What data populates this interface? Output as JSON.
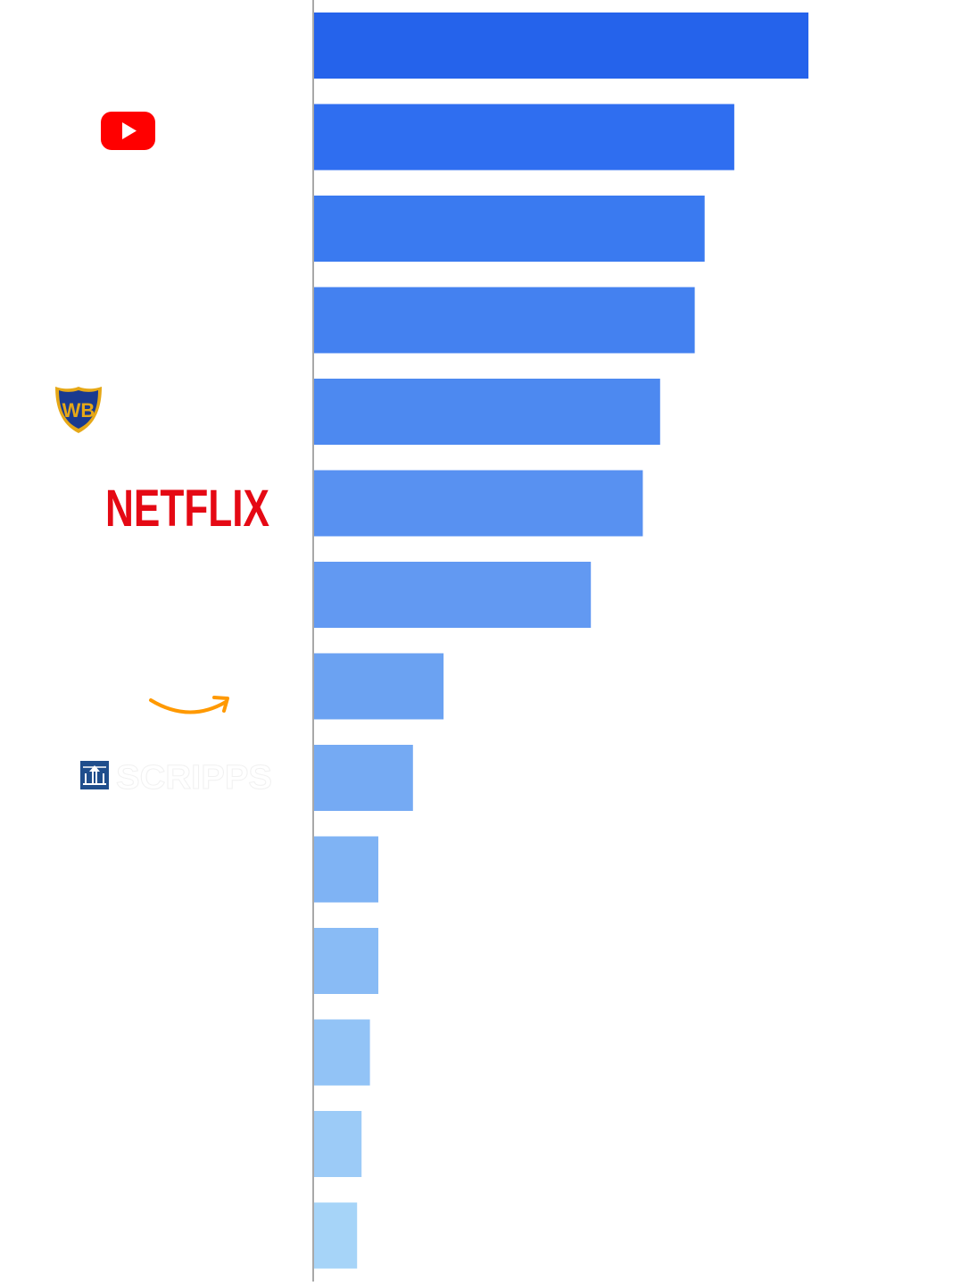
{
  "logos": {
    "youtube": {
      "icon": "youtube-logo-icon",
      "color": "#ff0000"
    },
    "warner_bros": {
      "icon": "warner-bros-shield-icon",
      "text": "WB",
      "colors": {
        "fill": "#1a3a8f",
        "outline": "#e6a817"
      }
    },
    "netflix": {
      "text": "NETFLIX",
      "color": "#e50914"
    },
    "amazon": {
      "icon": "amazon-smile-arrow-icon",
      "color": "#ff9900"
    },
    "scripps": {
      "icon": "scripps-lighthouse-icon",
      "text": "SCRIPPS",
      "color": "#1f4e8c"
    }
  },
  "chart_data": {
    "type": "bar",
    "orientation": "horizontal",
    "categories": [
      "",
      "YouTube",
      "",
      "",
      "Warner Bros.",
      "Netflix",
      "",
      "Amazon",
      "Scripps",
      "",
      "",
      "",
      "",
      ""
    ],
    "values": [
      100,
      85,
      79,
      77,
      70,
      66.5,
      56,
      26.2,
      20,
      13,
      13,
      11.3,
      9.6,
      8.7
    ],
    "xlim": [
      0,
      130
    ],
    "grid": false,
    "legend": "none",
    "bar_colors": [
      "#2563eb",
      "#2f6ef0",
      "#3a7af0",
      "#4481f0",
      "#4d89f0",
      "#5891f1",
      "#6299f2",
      "#6ba2f2",
      "#75aaf3",
      "#7fb3f4",
      "#89bbf5",
      "#92c3f6",
      "#9ccbf7",
      "#a6d4f8"
    ]
  }
}
